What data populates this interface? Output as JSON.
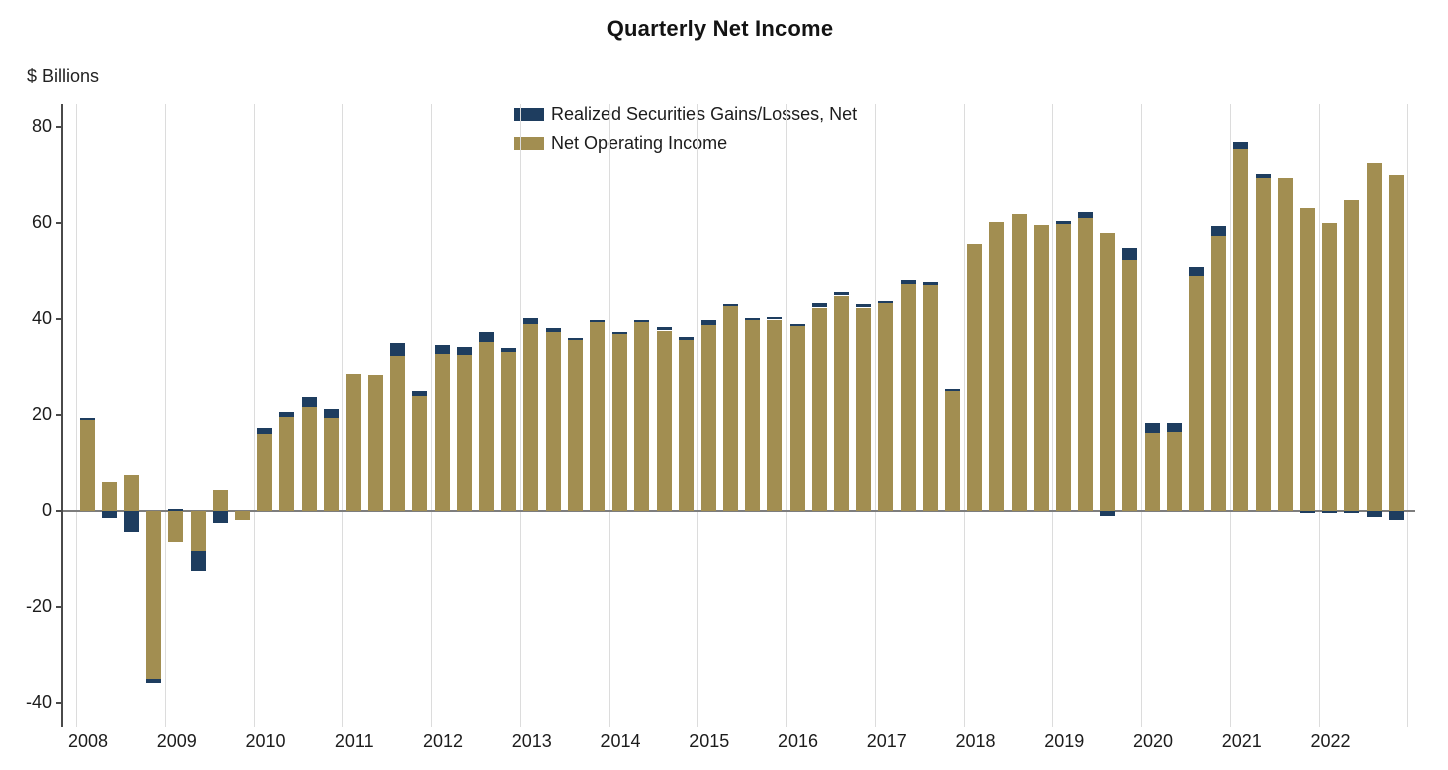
{
  "chart_data": {
    "type": "bar",
    "title": "Quarterly Net Income",
    "ylabel": "$ Billions",
    "ylim": [
      -40,
      80
    ],
    "yticks": [
      80,
      60,
      40,
      20,
      0,
      -20,
      -40
    ],
    "grid": "vertical-year-lines",
    "legend_position": "top-center",
    "categories_years": [
      2008,
      2009,
      2010,
      2011,
      2012,
      2013,
      2014,
      2015,
      2016,
      2017,
      2018,
      2019,
      2020,
      2021,
      2022
    ],
    "quarters_per_year": 4,
    "series": [
      {
        "name": "Realized Securities Gains/Losses, Net",
        "color": "#1e3d5f",
        "values": [
          0.4,
          -1.5,
          -4.3,
          -0.9,
          0.4,
          -4.3,
          -2.4,
          0,
          1.4,
          1.1,
          2.0,
          1.8,
          0,
          0,
          2.9,
          1.0,
          1.8,
          1.7,
          2.0,
          0.9,
          1.3,
          0.9,
          0.2,
          0.3,
          0.5,
          0.5,
          0.8,
          0.7,
          0.9,
          0.4,
          0.5,
          0.6,
          0.3,
          0.9,
          0.8,
          0.7,
          0.4,
          0.9,
          0.8,
          0.3,
          0,
          0,
          0,
          0,
          0.8,
          1.3,
          -1.0,
          2.4,
          2.0,
          1.9,
          1.8,
          2.1,
          1.3,
          0.8,
          0,
          -0.3,
          -0.4,
          -0.5,
          -1.3,
          -1.8
        ]
      },
      {
        "name": "Net Operating Income",
        "color": "#a28e51",
        "values": [
          19.0,
          6.0,
          7.5,
          -34.9,
          -6.5,
          -8.3,
          4.4,
          -1.9,
          16.0,
          19.6,
          21.7,
          19.4,
          28.6,
          28.4,
          32.2,
          24.0,
          32.7,
          32.5,
          35.3,
          33.1,
          39.0,
          37.2,
          35.8,
          39.4,
          36.8,
          39.4,
          37.6,
          35.6,
          38.8,
          42.7,
          39.8,
          39.9,
          38.6,
          42.4,
          44.9,
          42.4,
          43.3,
          47.2,
          47.0,
          25.2,
          55.7,
          60.2,
          61.8,
          59.6,
          59.7,
          61.1,
          58.0,
          52.3,
          16.3,
          16.4,
          49.0,
          57.3,
          75.5,
          69.4,
          69.4,
          63.2,
          60.0,
          64.8,
          72.6,
          70.0
        ]
      }
    ],
    "colors": {
      "gridline": "#dcdcdc",
      "zero_line": "#7d7d7d",
      "axis_line": "#4a4a4a",
      "text": "#1c1c1c"
    }
  }
}
